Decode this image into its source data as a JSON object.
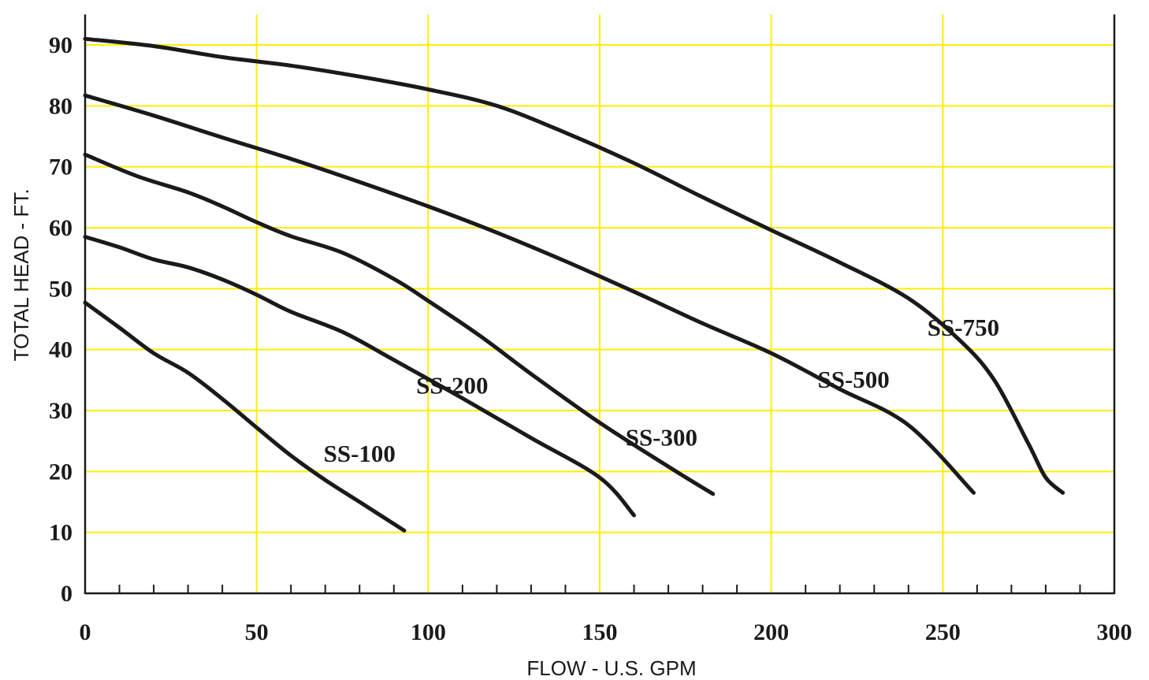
{
  "chart_data": {
    "type": "line",
    "xlabel": "FLOW - U.S. GPM",
    "ylabel": "TOTAL HEAD - FT.",
    "xlim": [
      0,
      300
    ],
    "ylim": [
      0,
      95
    ],
    "x_ticks": [
      0,
      50,
      100,
      150,
      200,
      250,
      300
    ],
    "x_tick_labels": [
      "0",
      "50",
      "100",
      "150",
      "200",
      "250",
      "300"
    ],
    "y_ticks": [
      0,
      10,
      20,
      30,
      40,
      50,
      60,
      70,
      80,
      90
    ],
    "y_tick_labels": [
      "0",
      "10",
      "20",
      "30",
      "40",
      "50",
      "60",
      "70",
      "80",
      "90"
    ],
    "x_minor_ticks": [
      10,
      20,
      30,
      40,
      60,
      70,
      80,
      90,
      110,
      120,
      130,
      140,
      160,
      170,
      180,
      190,
      210,
      220,
      230,
      240,
      260,
      270,
      280,
      290
    ],
    "grid": true,
    "colors": {
      "grid": "#ffee00",
      "line": "#1a1a1a",
      "axis": "#1a1a1a"
    },
    "series": [
      {
        "name": "SS-100",
        "x": [
          0,
          10,
          20,
          30,
          40,
          50,
          60,
          70,
          80,
          93
        ],
        "y": [
          47.7,
          43.6,
          39.4,
          36.2,
          31.9,
          27.2,
          22.6,
          18.6,
          15.0,
          10.3
        ]
      },
      {
        "name": "SS-200",
        "x": [
          0,
          10,
          20,
          30,
          40,
          50,
          60,
          75,
          90,
          110,
          130,
          150,
          160
        ],
        "y": [
          58.5,
          56.8,
          54.8,
          53.5,
          51.5,
          49.0,
          46.2,
          42.9,
          38.3,
          32.0,
          25.5,
          19.0,
          12.8
        ]
      },
      {
        "name": "SS-300",
        "x": [
          0,
          15,
          30,
          40,
          50,
          60,
          75,
          90,
          100,
          115,
          130,
          150,
          170,
          183
        ],
        "y": [
          72.0,
          68.5,
          65.8,
          63.5,
          60.9,
          58.6,
          55.9,
          51.6,
          48.0,
          42.3,
          36.0,
          28.0,
          20.8,
          16.3
        ]
      },
      {
        "name": "SS-500",
        "x": [
          0,
          20,
          40,
          60,
          80,
          100,
          120,
          140,
          160,
          180,
          200,
          220,
          240,
          259
        ],
        "y": [
          81.7,
          78.4,
          74.8,
          71.3,
          67.5,
          63.5,
          59.2,
          54.5,
          49.5,
          44.3,
          39.4,
          33.5,
          27.6,
          16.5
        ]
      },
      {
        "name": "SS-750",
        "x": [
          0,
          20,
          40,
          60,
          80,
          100,
          120,
          140,
          160,
          180,
          200,
          220,
          240,
          255,
          265,
          275,
          280,
          285
        ],
        "y": [
          91.0,
          89.8,
          88.0,
          86.6,
          84.8,
          82.7,
          80.0,
          75.6,
          70.6,
          65.0,
          59.6,
          54.3,
          48.4,
          41.5,
          35.0,
          24.5,
          19.0,
          16.5
        ]
      }
    ],
    "series_labels": [
      {
        "text": "SS-100",
        "x": 80,
        "y": 23
      },
      {
        "text": "SS-200",
        "x": 107,
        "y": 34.2
      },
      {
        "text": "SS-300",
        "x": 168,
        "y": 25.7
      },
      {
        "text": "SS-500",
        "x": 224,
        "y": 35.2
      },
      {
        "text": "SS-750",
        "x": 256,
        "y": 43.7
      }
    ]
  }
}
